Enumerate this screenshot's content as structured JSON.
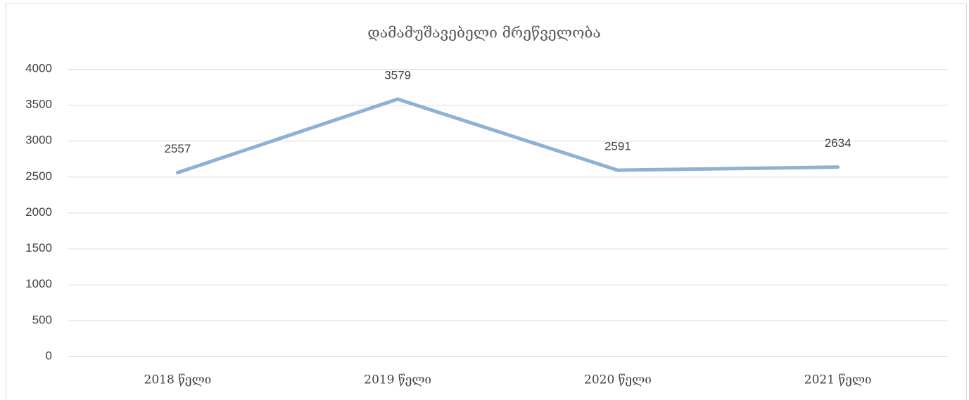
{
  "chart_data": {
    "type": "line",
    "title": "დამამუშავებელი მრეწველობა",
    "categories": [
      "2018 წელი",
      "2019 წელი",
      "2020 წელი",
      "2021 წელი"
    ],
    "values": [
      2557,
      3579,
      2591,
      2634
    ],
    "color": "#8fb1d2",
    "ylim": [
      0,
      4000
    ],
    "yticks": [
      0,
      500,
      1000,
      1500,
      2000,
      2500,
      3000,
      3500,
      4000
    ],
    "grid": true
  }
}
